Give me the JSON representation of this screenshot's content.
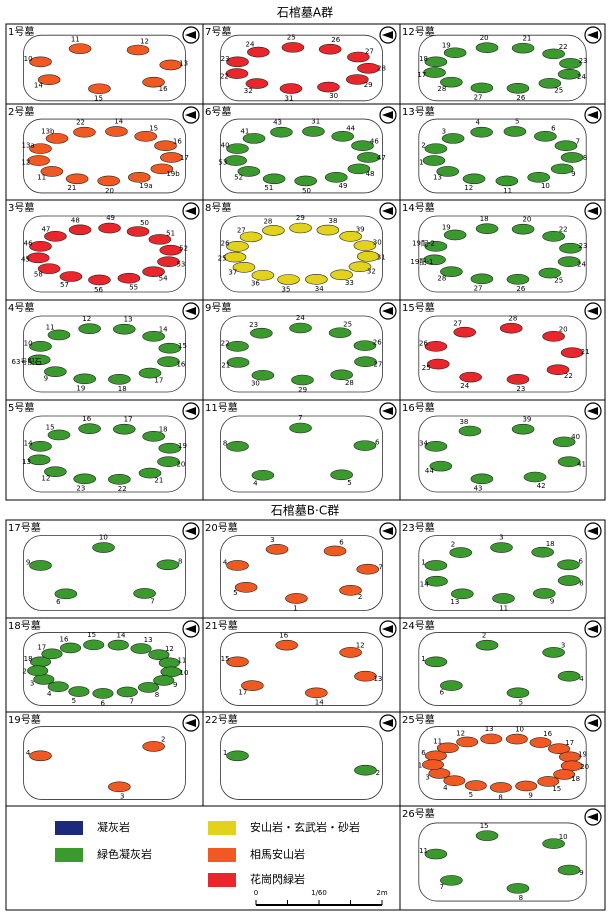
{
  "title_a": "石棺墓A群",
  "title_bc": "石棺墓B·C群",
  "group_a": [
    {
      "name": "1号墓",
      "color": "#f05a22",
      "stones": [
        "10",
        "11",
        "12",
        "13",
        "16",
        "15",
        "14"
      ]
    },
    {
      "name": "7号墓",
      "color": "#e8262b",
      "stones": [
        "23",
        "24",
        "25",
        "26",
        "27",
        "28",
        "29",
        "30",
        "31",
        "32",
        "22"
      ]
    },
    {
      "name": "12号墓",
      "color": "#3a9a2e",
      "stones": [
        "18",
        "19",
        "20",
        "21",
        "22",
        "23",
        "24",
        "25",
        "26",
        "27",
        "28",
        "17"
      ]
    },
    {
      "name": "2号墓",
      "color": "#f05a22",
      "stones": [
        "13a",
        "13b",
        "22",
        "14",
        "15",
        "16",
        "17",
        "19b",
        "19a",
        "20",
        "21",
        "11",
        "12"
      ]
    },
    {
      "name": "6号墓",
      "color": "#3a9a2e",
      "stones": [
        "40",
        "41",
        "43",
        "31",
        "44",
        "46",
        "47",
        "48",
        "49",
        "50",
        "51",
        "52",
        "53"
      ]
    },
    {
      "name": "13号墓",
      "color": "#3a9a2e",
      "stones": [
        "2",
        "3",
        "4",
        "5",
        "6",
        "7",
        "8",
        "9",
        "10",
        "11",
        "12",
        "13",
        "1"
      ]
    },
    {
      "name": "3号墓",
      "color": "#e8262b",
      "stones": [
        "46",
        "47",
        "48",
        "49",
        "50",
        "51",
        "52",
        "53",
        "54",
        "55",
        "56",
        "57",
        "58",
        "45"
      ]
    },
    {
      "name": "8号墓",
      "color": "#e3d21c",
      "stones": [
        "26",
        "27",
        "28",
        "29",
        "38",
        "39",
        "30",
        "31",
        "32",
        "33",
        "34",
        "35",
        "36",
        "37",
        "25"
      ]
    },
    {
      "name": "14号墓",
      "color": "#3a9a2e",
      "stones": [
        "19配-2",
        "19",
        "18",
        "20",
        "22",
        "23",
        "24",
        "25",
        "26",
        "27",
        "28",
        "19配-1"
      ]
    },
    {
      "name": "4号墓",
      "color": "#3a9a2e",
      "stones": [
        "10",
        "11",
        "12",
        "13",
        "14",
        "15",
        "16",
        "17",
        "18",
        "19",
        "9",
        "63号配石"
      ]
    },
    {
      "name": "9号墓",
      "color": "#3a9a2e",
      "stones": [
        "22",
        "23",
        "24",
        "25",
        "26",
        "27",
        "28",
        "29",
        "30",
        "21"
      ]
    },
    {
      "name": "15号墓",
      "color": "#e8262b",
      "stones": [
        "26",
        "27",
        "28",
        "20",
        "21",
        "22",
        "23",
        "24",
        "25"
      ]
    },
    {
      "name": "5号墓",
      "color": "#3a9a2e",
      "stones": [
        "14",
        "15",
        "16",
        "17",
        "18",
        "19",
        "20",
        "21",
        "22",
        "23",
        "12",
        "13"
      ]
    },
    {
      "name": "11号墓",
      "color": "#3a9a2e",
      "stones": [
        "8",
        "7",
        "6",
        "5",
        "4"
      ]
    },
    {
      "name": "16号墓",
      "color": "#3a9a2e",
      "stones": [
        "34",
        "38",
        "39",
        "40",
        "41",
        "42",
        "43",
        "44"
      ]
    }
  ],
  "group_bc": [
    {
      "name": "17号墓",
      "color": "#3a9a2e",
      "stones": [
        "9",
        "10",
        "8",
        "7",
        "6"
      ]
    },
    {
      "name": "20号墓",
      "color": "#f05a22",
      "stones": [
        "4",
        "3",
        "6",
        "7",
        "2",
        "1",
        "5"
      ]
    },
    {
      "name": "23号墓",
      "color": "#3a9a2e",
      "stones": [
        "1",
        "2",
        "3",
        "18",
        "6",
        "8",
        "9",
        "11",
        "13",
        "14"
      ]
    },
    {
      "name": "18号墓",
      "color": "#3a9a2e",
      "stones": [
        "18",
        "17",
        "16",
        "15",
        "14",
        "13",
        "12",
        "11",
        "10",
        "9",
        "8",
        "7",
        "6",
        "5",
        "4",
        "3",
        "2"
      ]
    },
    {
      "name": "21号墓",
      "color": "#f05a22",
      "stones": [
        "15",
        "16",
        "12",
        "13",
        "14",
        "17"
      ]
    },
    {
      "name": "24号墓",
      "color": "#3a9a2e",
      "stones": [
        "1",
        "2",
        "3",
        "4",
        "5",
        "6"
      ]
    },
    {
      "name": "19号墓",
      "color": "#f05a22",
      "stones": [
        "4",
        "2",
        "3"
      ]
    },
    {
      "name": "22号墓",
      "color": "#3a9a2e",
      "stones": [
        "1",
        "2"
      ]
    },
    {
      "name": "25号墓",
      "color": "#f05a22",
      "stones": [
        "6",
        "11",
        "12",
        "13",
        "10",
        "16",
        "17",
        "19",
        "20",
        "18",
        "15",
        "9",
        "8",
        "5",
        "4",
        "3",
        "1"
      ]
    },
    {
      "name": "26号墓",
      "color": "#3a9a2e",
      "stones": [
        "11",
        "15",
        "10",
        "9",
        "8",
        "7"
      ]
    }
  ],
  "legend": [
    {
      "label": "凝灰岩",
      "color": "#1b2a7a"
    },
    {
      "label": "緑色凝灰岩",
      "color": "#3a9a2e"
    },
    {
      "label": "安山岩・玄武岩・砂岩",
      "color": "#e3d21c"
    },
    {
      "label": "相馬安山岩",
      "color": "#f05a22"
    },
    {
      "label": "花崗閃緑岩",
      "color": "#e8262b"
    }
  ],
  "scale": {
    "start": "0",
    "ratio": "1/60",
    "end": "2m"
  }
}
